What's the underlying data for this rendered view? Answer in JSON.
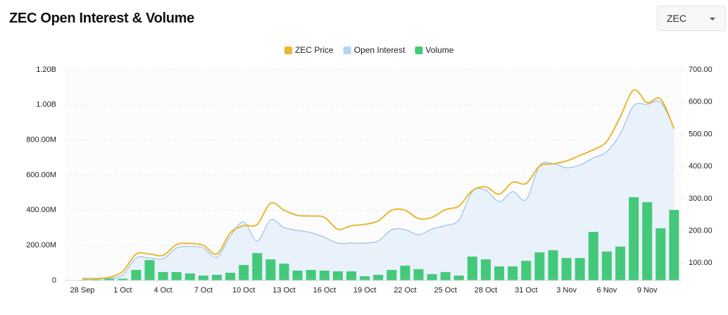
{
  "chart_data": {
    "type": "combo",
    "title": "ZEC Open Interest & Volume",
    "selector": "ZEC",
    "categories": [
      "28 Sep",
      null,
      null,
      "1 Oct",
      null,
      null,
      "4 Oct",
      null,
      null,
      "7 Oct",
      null,
      null,
      "10 Oct",
      null,
      null,
      "13 Oct",
      null,
      null,
      "16 Oct",
      null,
      null,
      "19 Oct",
      null,
      null,
      "22 Oct",
      null,
      null,
      "25 Oct",
      null,
      null,
      "28 Oct",
      null,
      null,
      "31 Oct",
      null,
      null,
      "3 Nov",
      null,
      null,
      "6 Nov",
      null,
      null,
      "9 Nov",
      null,
      null
    ],
    "series": [
      {
        "name": "ZEC Price",
        "color": "#e8b830",
        "kind": "line",
        "axis": "y2",
        "values": [
          52,
          52,
          56,
          74,
          128,
          128,
          124,
          157,
          161,
          155,
          128,
          194,
          216,
          220,
          286,
          264,
          248,
          246,
          242,
          205,
          216,
          220,
          231,
          264,
          264,
          238,
          242,
          266,
          277,
          325,
          336,
          314,
          351,
          347,
          401,
          408,
          417,
          434,
          452,
          478,
          554,
          637,
          598,
          609,
          517
        ]
      },
      {
        "name": "Open Interest",
        "color": "#8ab8e6",
        "kind": "area",
        "values": [
          4000000,
          8000000,
          12000000,
          32000000,
          128000000,
          128000000,
          124000000,
          185000000,
          193000000,
          185000000,
          132000000,
          253000000,
          333000000,
          225000000,
          345000000,
          301000000,
          285000000,
          273000000,
          245000000,
          213000000,
          213000000,
          213000000,
          225000000,
          289000000,
          289000000,
          261000000,
          293000000,
          313000000,
          345000000,
          506000000,
          514000000,
          449000000,
          506000000,
          461000000,
          654000000,
          666000000,
          642000000,
          658000000,
          698000000,
          734000000,
          835000000,
          995000000,
          1003000000,
          1015000000,
          867000000
        ]
      },
      {
        "name": "Volume",
        "color": "#44c97a",
        "kind": "bar",
        "values": [
          3000000,
          5000000,
          10000000,
          10000000,
          60000000,
          116000000,
          48000000,
          48000000,
          40000000,
          28000000,
          32000000,
          44000000,
          88000000,
          156000000,
          120000000,
          96000000,
          56000000,
          60000000,
          56000000,
          52000000,
          52000000,
          24000000,
          32000000,
          60000000,
          84000000,
          64000000,
          36000000,
          48000000,
          28000000,
          136000000,
          120000000,
          80000000,
          80000000,
          112000000,
          160000000,
          172000000,
          128000000,
          128000000,
          277000000,
          165000000,
          193000000,
          474000000,
          446000000,
          297000000,
          402000000
        ]
      }
    ],
    "ylim": [
      0,
      1200000000
    ],
    "yticks": [
      0,
      {
        "value": 200000000,
        "label": "200.00M"
      },
      {
        "value": 400000000,
        "label": "400.00M"
      },
      {
        "value": 600000000,
        "label": "600.00M"
      },
      {
        "value": 800000000,
        "label": "800.00M"
      },
      {
        "value": 1000000000,
        "label": "1.00B"
      },
      {
        "value": 1200000000,
        "label": "1.20B"
      }
    ],
    "y2lim": [
      46,
      700
    ],
    "y2ticks": [
      {
        "value": 100,
        "label": "100.00"
      },
      {
        "value": 200,
        "label": "200.00"
      },
      {
        "value": 300,
        "label": "300.00"
      },
      {
        "value": 400,
        "label": "400.00"
      },
      {
        "value": 500,
        "label": "500.00"
      },
      {
        "value": 600,
        "label": "600.00"
      },
      {
        "value": 700,
        "label": "700.00"
      }
    ],
    "grid": true,
    "legend": "top"
  }
}
